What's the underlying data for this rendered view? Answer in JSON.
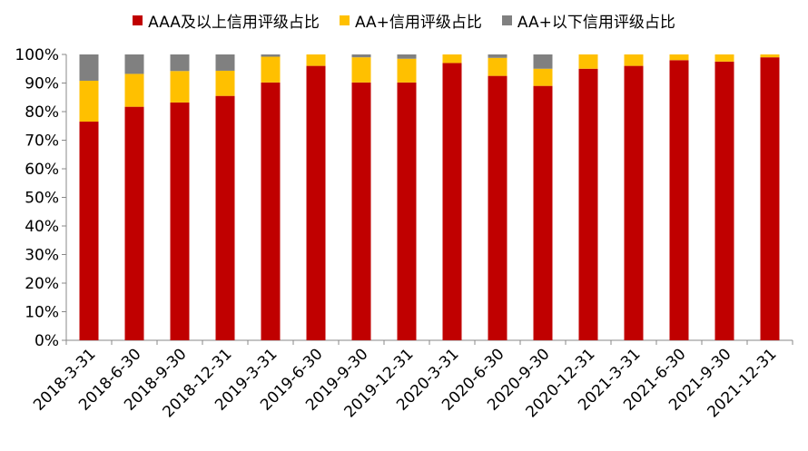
{
  "chart_data": {
    "type": "bar",
    "stacked": true,
    "categories": [
      "2018-3-31",
      "2018-6-30",
      "2018-9-30",
      "2018-12-31",
      "2019-3-31",
      "2019-6-30",
      "2019-9-30",
      "2019-12-31",
      "2020-3-31",
      "2020-6-30",
      "2020-9-30",
      "2020-12-31",
      "2021-3-31",
      "2021-6-30",
      "2021-9-30",
      "2021-12-31"
    ],
    "series": [
      {
        "name": "AAA及以上信用评级占比",
        "color": "#C00000",
        "values": [
          76.5,
          81.7,
          83.2,
          85.5,
          90.2,
          96.0,
          90.2,
          90.2,
          97.0,
          92.5,
          89.0,
          95.0,
          96.0,
          98.0,
          97.5,
          99.0
        ]
      },
      {
        "name": "AA+信用评级占比",
        "color": "#FFC000",
        "values": [
          14.3,
          11.5,
          11.0,
          8.8,
          9.0,
          4.0,
          8.8,
          8.3,
          3.0,
          6.3,
          6.0,
          5.0,
          4.0,
          2.0,
          2.5,
          1.0
        ]
      },
      {
        "name": "AA+以下信用评级占比",
        "color": "#808080",
        "values": [
          9.2,
          6.8,
          5.8,
          5.7,
          0.8,
          0.0,
          1.0,
          1.5,
          0.0,
          1.2,
          5.0,
          0.0,
          0.0,
          0.0,
          0.0,
          0.0
        ]
      }
    ],
    "yticks": [
      "0%",
      "10%",
      "20%",
      "30%",
      "40%",
      "50%",
      "60%",
      "70%",
      "80%",
      "90%",
      "100%"
    ],
    "ylim": [
      0,
      100
    ],
    "legend_position": "top",
    "grid": false
  }
}
